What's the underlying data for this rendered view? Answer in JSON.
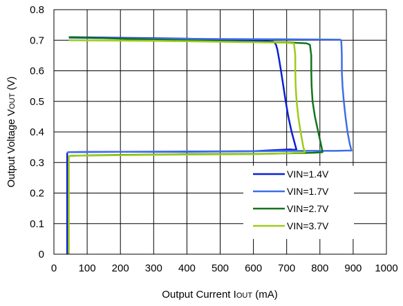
{
  "chart_data": {
    "type": "line",
    "xlim": [
      0,
      1000
    ],
    "ylim": [
      0,
      0.8
    ],
    "xticks": [
      "0",
      "100",
      "200",
      "300",
      "400",
      "500",
      "600",
      "700",
      "800",
      "900",
      "1000"
    ],
    "yticks": [
      "0",
      "0.1",
      "0.2",
      "0.3",
      "0.4",
      "0.5",
      "0.6",
      "0.7",
      "0.8"
    ],
    "xlabel": {
      "prefix": "Output Current I",
      "sub": "OUT",
      "suffix": " (mA)"
    },
    "ylabel": {
      "prefix": "Output Voltage V",
      "sub": "OUT",
      "suffix": " (V)"
    },
    "grid": true,
    "legend_position": "bottom-right",
    "series": [
      {
        "name": "VIN=1.4V",
        "color": "#0a1fd6",
        "x": [
          40,
          40,
          40,
          42,
          45,
          200,
          400,
          600,
          650,
          690,
          710,
          720,
          727,
          730,
          725,
          715,
          705,
          697,
          690,
          683,
          677,
          672,
          668,
          665,
          660,
          600,
          400,
          200,
          45
        ],
        "y": [
          0.0,
          0.2,
          0.33,
          0.333,
          0.334,
          0.335,
          0.335,
          0.337,
          0.34,
          0.342,
          0.343,
          0.342,
          0.342,
          0.34,
          0.36,
          0.4,
          0.45,
          0.5,
          0.55,
          0.6,
          0.64,
          0.67,
          0.685,
          0.69,
          0.695,
          0.7,
          0.705,
          0.708,
          0.71
        ]
      },
      {
        "name": "VIN=1.7V",
        "color": "#3d6ee8",
        "x": [
          40,
          42,
          45,
          200,
          400,
          600,
          750,
          800,
          850,
          880,
          895,
          890,
          883,
          877,
          872,
          868,
          866,
          866,
          865,
          864,
          860,
          700,
          500,
          300,
          45
        ],
        "y": [
          0.33,
          0.333,
          0.334,
          0.335,
          0.336,
          0.337,
          0.338,
          0.338,
          0.338,
          0.339,
          0.339,
          0.36,
          0.4,
          0.45,
          0.5,
          0.55,
          0.6,
          0.65,
          0.68,
          0.7,
          0.702,
          0.703,
          0.704,
          0.705,
          0.708
        ]
      },
      {
        "name": "VIN=2.7V",
        "color": "#12741d",
        "x": [
          45,
          50,
          200,
          400,
          600,
          700,
          780,
          800,
          808,
          805,
          795,
          785,
          778,
          775,
          774,
          774,
          770,
          760,
          700,
          500,
          300,
          45
        ],
        "y": [
          0.32,
          0.322,
          0.325,
          0.327,
          0.328,
          0.33,
          0.332,
          0.333,
          0.334,
          0.35,
          0.4,
          0.45,
          0.5,
          0.55,
          0.6,
          0.65,
          0.685,
          0.69,
          0.693,
          0.697,
          0.702,
          0.71
        ]
      },
      {
        "name": "VIN=3.7V",
        "color": "#9ccc1a",
        "x": [
          45,
          45,
          45,
          50,
          200,
          400,
          600,
          700,
          730,
          750,
          755,
          750,
          742,
          735,
          730,
          727,
          726,
          726,
          722,
          700,
          500,
          300,
          45
        ],
        "y": [
          0.0,
          0.2,
          0.32,
          0.322,
          0.324,
          0.326,
          0.327,
          0.33,
          0.332,
          0.333,
          0.334,
          0.35,
          0.4,
          0.45,
          0.5,
          0.55,
          0.6,
          0.65,
          0.69,
          0.692,
          0.695,
          0.698,
          0.7
        ]
      }
    ]
  }
}
